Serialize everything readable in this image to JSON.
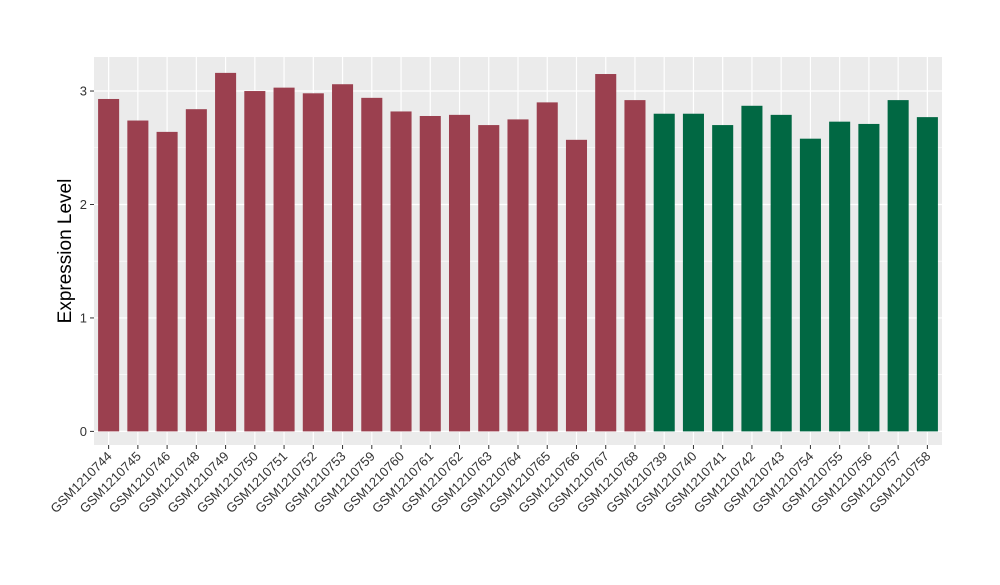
{
  "chart_data": {
    "type": "bar",
    "title": "",
    "xlabel": "",
    "ylabel": "Expression Level",
    "ylim": [
      -0.12,
      3.3
    ],
    "yticks": [
      0,
      1,
      2,
      3
    ],
    "grid": true,
    "legend": "none",
    "categories": [
      "GSM1210744",
      "GSM1210745",
      "GSM1210746",
      "GSM1210748",
      "GSM1210749",
      "GSM1210750",
      "GSM1210751",
      "GSM1210752",
      "GSM1210753",
      "GSM1210759",
      "GSM1210760",
      "GSM1210761",
      "GSM1210762",
      "GSM1210763",
      "GSM1210764",
      "GSM1210765",
      "GSM1210766",
      "GSM1210767",
      "GSM1210768",
      "GSM1210739",
      "GSM1210740",
      "GSM1210741",
      "GSM1210742",
      "GSM1210743",
      "GSM1210754",
      "GSM1210755",
      "GSM1210756",
      "GSM1210757",
      "GSM1210758"
    ],
    "values": [
      2.93,
      2.74,
      2.64,
      2.84,
      3.16,
      3.0,
      3.03,
      2.98,
      3.06,
      2.94,
      2.82,
      2.78,
      2.79,
      2.7,
      2.75,
      2.9,
      2.57,
      3.15,
      2.92,
      2.8,
      2.8,
      2.7,
      2.87,
      2.79,
      2.58,
      2.73,
      2.71,
      2.92,
      2.77
    ],
    "groups": [
      0,
      0,
      0,
      0,
      0,
      0,
      0,
      0,
      0,
      0,
      0,
      0,
      0,
      0,
      0,
      0,
      0,
      0,
      0,
      1,
      1,
      1,
      1,
      1,
      1,
      1,
      1,
      1,
      1
    ],
    "group_colors": [
      "#9b404f",
      "#016843"
    ]
  },
  "colors": {
    "panel": "#ebebeb",
    "grid_major": "#ffffff",
    "axis_text": "#333333"
  }
}
